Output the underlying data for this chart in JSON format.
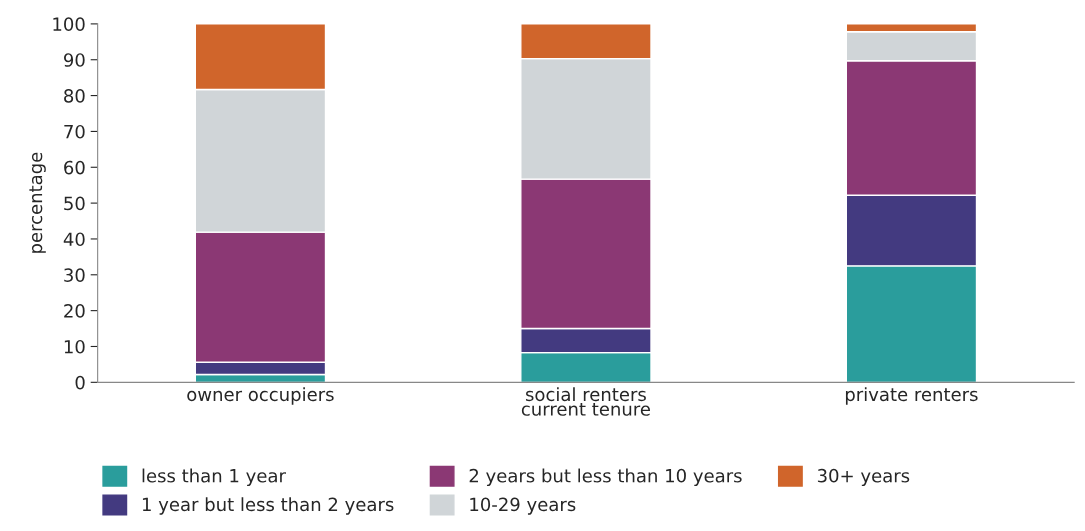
{
  "chart_data": {
    "type": "bar",
    "stacked": true,
    "categories": [
      "owner occupiers",
      "social renters",
      "private renters"
    ],
    "xlabel": "current tenure",
    "ylabel": "percentage",
    "ylim": [
      0,
      100
    ],
    "yticks": [
      0,
      10,
      20,
      30,
      40,
      50,
      60,
      70,
      80,
      90,
      100
    ],
    "grid": false,
    "legend": "bottom",
    "series": [
      {
        "name": "less than 1 year",
        "color": "#2a9d9c",
        "values": [
          2.2,
          8.3,
          32.5
        ]
      },
      {
        "name": "1 year but less than 2 years",
        "color": "#433a80",
        "values": [
          3.4,
          6.7,
          19.7
        ]
      },
      {
        "name": "2 years but less than 10 years",
        "color": "#8b3874",
        "values": [
          36.3,
          41.7,
          37.5
        ]
      },
      {
        "name": "10-29 years",
        "color": "#d0d5d8",
        "values": [
          39.8,
          33.6,
          8.1
        ]
      },
      {
        "name": "30+ years",
        "color": "#d0652b",
        "values": [
          18.3,
          9.7,
          2.2
        ]
      }
    ]
  }
}
